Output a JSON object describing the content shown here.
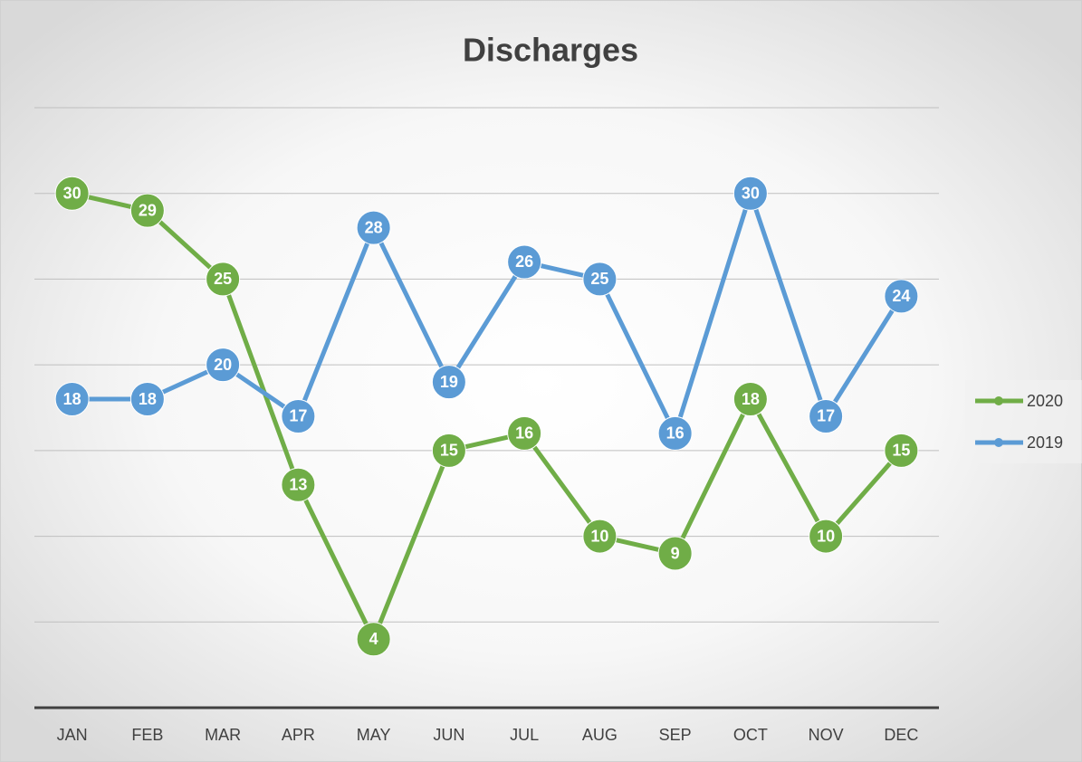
{
  "chart_data": {
    "type": "line",
    "title": "Discharges",
    "categories": [
      "JAN",
      "FEB",
      "MAR",
      "APR",
      "MAY",
      "JUN",
      "JUL",
      "AUG",
      "SEP",
      "OCT",
      "NOV",
      "DEC"
    ],
    "series": [
      {
        "name": "2020",
        "color": "#70ad47",
        "values": [
          30,
          29,
          25,
          13,
          4,
          15,
          16,
          10,
          9,
          18,
          10,
          15
        ]
      },
      {
        "name": "2019",
        "color": "#5b9bd5",
        "values": [
          18,
          18,
          20,
          17,
          28,
          19,
          26,
          25,
          16,
          30,
          17,
          24
        ]
      }
    ],
    "ylim": [
      0,
      35
    ],
    "yticks": [
      0,
      5,
      10,
      15,
      20,
      25,
      30,
      35
    ],
    "grid": true,
    "legend": "right"
  }
}
